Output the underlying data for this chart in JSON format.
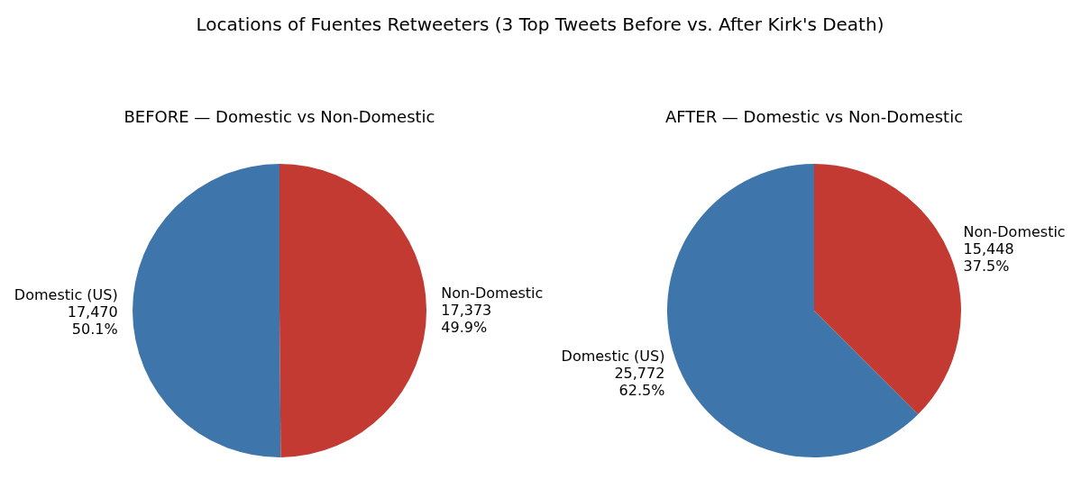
{
  "chart_data": [
    {
      "type": "pie",
      "title": "BEFORE — Domestic vs Non-Domestic",
      "annotations": [
        "Locations of Fuentes Retweeters (3 Top Tweets Before vs. After Kirk's Death)"
      ],
      "categories": [
        "Domestic (US)",
        "Non-Domestic"
      ],
      "values": [
        17470,
        17373
      ],
      "value_labels": [
        "17,470\n50.1%",
        "17,373\n49.9%"
      ],
      "colors": [
        "#3e76ac",
        "#c23a31"
      ]
    },
    {
      "type": "pie",
      "title": "AFTER — Domestic vs Non-Domestic",
      "categories": [
        "Domestic (US)",
        "Non-Domestic"
      ],
      "values": [
        25772,
        15448
      ],
      "value_labels": [
        "25,772\n62.5%",
        "15,448\n37.5%"
      ],
      "colors": [
        "#3e76ac",
        "#c23a31"
      ]
    }
  ]
}
